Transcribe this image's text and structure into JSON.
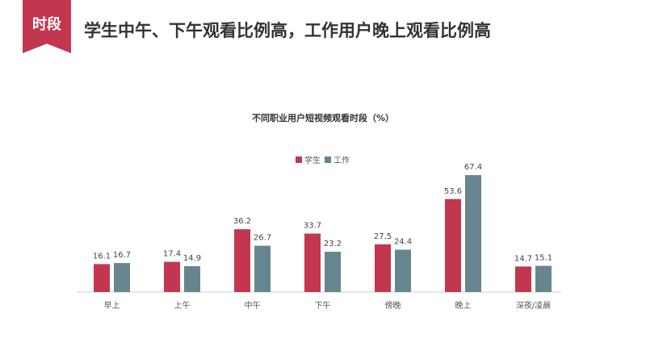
{
  "header": {
    "tag": "时段",
    "headline": "学生中午、下午观看比例高，工作用户晚上观看比例高"
  },
  "colors": {
    "accent": "#c2374f",
    "student": "#c2374f",
    "work": "#66858e",
    "axis": "#cccccc"
  },
  "chart_data": {
    "type": "bar",
    "title": "不同职业用户短视频观看时段（%）",
    "xlabel": "",
    "ylabel": "",
    "categories": [
      "早上",
      "上午",
      "中午",
      "下午",
      "傍晚",
      "晚上",
      "深夜/凌晨"
    ],
    "series": [
      {
        "name": "学生",
        "color": "#c2374f",
        "values": [
          16.1,
          17.4,
          36.2,
          33.7,
          27.5,
          53.6,
          14.7
        ]
      },
      {
        "name": "工作",
        "color": "#66858e",
        "values": [
          16.7,
          14.9,
          26.7,
          23.2,
          24.4,
          67.4,
          15.1
        ]
      }
    ],
    "ylim": [
      0,
      80
    ],
    "grid": false,
    "legend_position": "top-center",
    "data_labels": true
  }
}
